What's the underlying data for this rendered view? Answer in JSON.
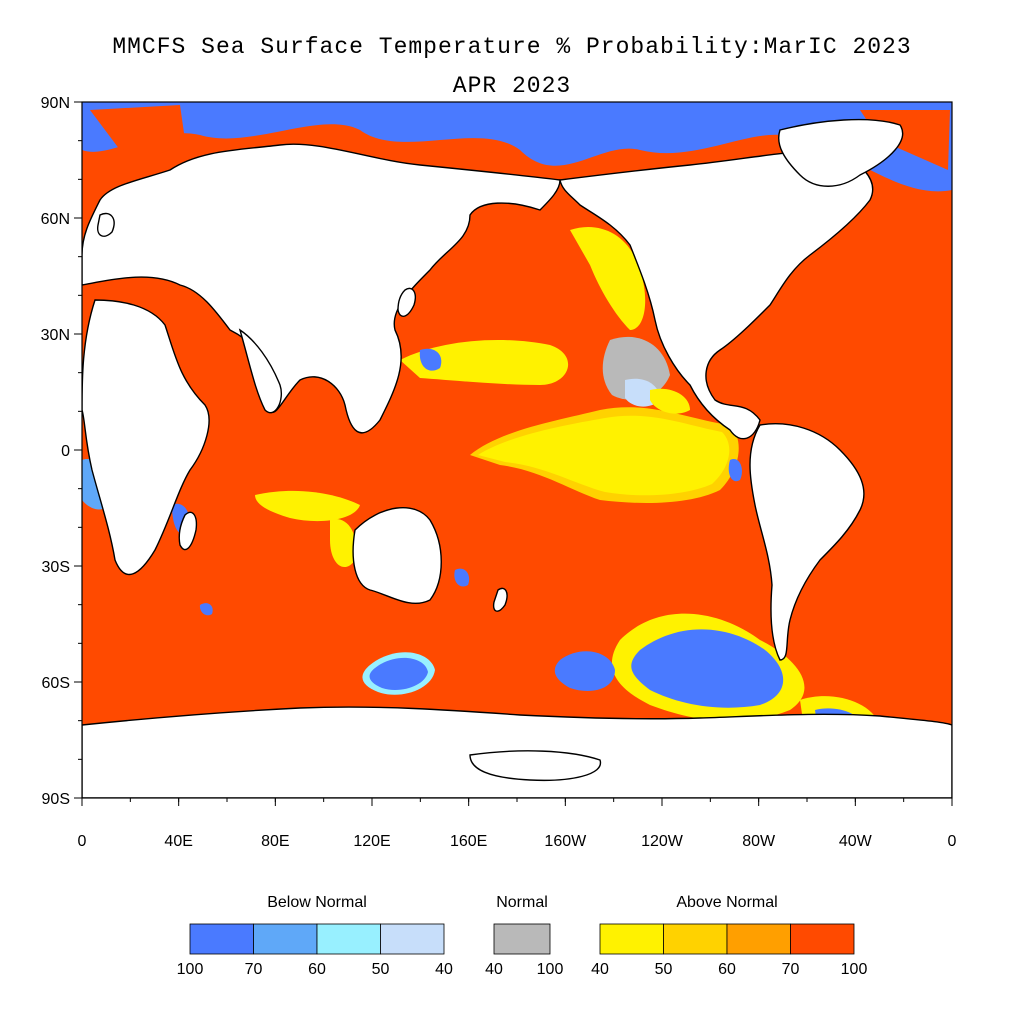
{
  "title": {
    "line1": "MMCFS Sea Surface Temperature % Probability:MarIC 2023",
    "line2": "APR 2023"
  },
  "axes": {
    "lat_labels": [
      "90N",
      "60N",
      "30N",
      "0",
      "30S",
      "60S",
      "90S"
    ],
    "lon_labels": [
      "0",
      "40E",
      "80E",
      "120E",
      "160E",
      "160W",
      "120W",
      "80W",
      "40W",
      "0"
    ]
  },
  "legend": {
    "below": {
      "title": "Below Normal",
      "colors": [
        "#4a7aff",
        "#5fa8f8",
        "#98f0ff",
        "#c7defa"
      ],
      "ticks": [
        "100",
        "70",
        "60",
        "50",
        "40"
      ]
    },
    "normal": {
      "title": "Normal",
      "colors": [
        "#b9b9b9"
      ],
      "ticks": [
        "40",
        "100"
      ]
    },
    "above": {
      "title": "Above Normal",
      "colors": [
        "#fff200",
        "#ffd200",
        "#ff9f00",
        "#ff4a00"
      ],
      "ticks": [
        "40",
        "50",
        "60",
        "70",
        "100"
      ]
    }
  },
  "colors": {
    "ocean_dominant": "#ff4a00",
    "land": "#ffffff",
    "coastline": "#000000"
  }
}
